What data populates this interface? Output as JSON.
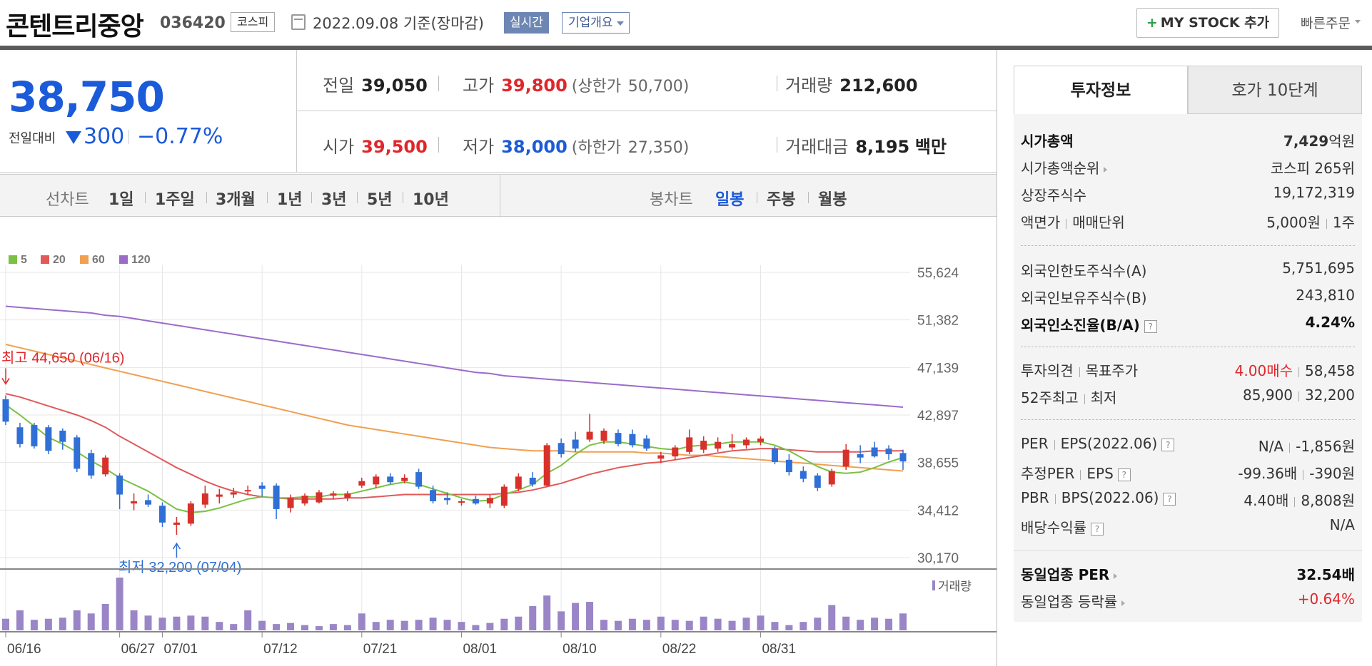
{
  "header": {
    "stock_name": "콘텐트리중앙",
    "stock_code": "036420",
    "market_badge": "코스피",
    "date_text": "2022.09.08  기준(장마감)",
    "realtime_label": "실시간",
    "company_overview_label": "기업개요",
    "my_stock_label": "MY STOCK 추가",
    "my_stock_plus": "+",
    "quick_order_label": "빠른주문"
  },
  "price": {
    "current": "38,750",
    "change_label": "전일대비",
    "change_value": "300",
    "change_percent": "−0.77%",
    "direction": "down"
  },
  "quote": {
    "prev_close_label": "전일",
    "prev_close": "39,050",
    "high_label": "고가",
    "high": "39,800",
    "upper_limit_label": "(상한가",
    "upper_limit": "50,700)",
    "volume_label": "거래량",
    "volume": "212,600",
    "open_label": "시가",
    "open": "39,500",
    "low_label": "저가",
    "low": "38,000",
    "lower_limit_label": "(하한가",
    "lower_limit": "27,350)",
    "trade_value_label": "거래대금",
    "trade_value": "8,195",
    "trade_value_unit": "백만"
  },
  "periods": {
    "line_chart_label": "선차트",
    "line_options": [
      "1일",
      "1주일",
      "3개월",
      "1년",
      "3년",
      "5년",
      "10년"
    ],
    "candle_chart_label": "봉차트",
    "candle_options": [
      "일봉",
      "주봉",
      "월봉"
    ],
    "selected_candle": "일봉"
  },
  "chart_data": {
    "type": "candlestick",
    "legend": [
      {
        "name": "5",
        "color": "#7ac143"
      },
      {
        "name": "20",
        "color": "#e05a5a"
      },
      {
        "name": "60",
        "color": "#f0a050"
      },
      {
        "name": "120",
        "color": "#9a6cc8"
      }
    ],
    "y_ticks": [
      55624,
      51382,
      47139,
      42897,
      38655,
      34412,
      30170
    ],
    "y_tick_labels": [
      "55,624",
      "51,382",
      "47,139",
      "42,897",
      "38,655",
      "34,412",
      "30,170"
    ],
    "ylim": [
      30170,
      55624
    ],
    "x_tick_labels": [
      "06/16",
      "06/27",
      "07/01",
      "07/12",
      "07/21",
      "08/01",
      "08/10",
      "08/22",
      "08/31"
    ],
    "x_tick_index": [
      0,
      8,
      11,
      18,
      25,
      32,
      39,
      46,
      53
    ],
    "high_annotation": "최고 44,650 (06/16)",
    "low_annotation": "최저 32,200 (07/04)",
    "volume_label": "거래량",
    "up_color": "#d8302a",
    "down_color": "#2f6fd6",
    "candles": [
      {
        "o": 44300,
        "h": 44650,
        "l": 42000,
        "c": 42300
      },
      {
        "o": 41800,
        "h": 42200,
        "l": 40000,
        "c": 40300
      },
      {
        "o": 42000,
        "h": 42200,
        "l": 39900,
        "c": 40100
      },
      {
        "o": 41800,
        "h": 42000,
        "l": 39400,
        "c": 39700
      },
      {
        "o": 41500,
        "h": 41700,
        "l": 39800,
        "c": 40500
      },
      {
        "o": 40900,
        "h": 41100,
        "l": 37800,
        "c": 38100
      },
      {
        "o": 39500,
        "h": 39800,
        "l": 37200,
        "c": 37500
      },
      {
        "o": 37600,
        "h": 39300,
        "l": 37400,
        "c": 39100
      },
      {
        "o": 37500,
        "h": 37700,
        "l": 34500,
        "c": 35800
      },
      {
        "o": 35000,
        "h": 35900,
        "l": 34400,
        "c": 35200
      },
      {
        "o": 35300,
        "h": 35800,
        "l": 34700,
        "c": 34900
      },
      {
        "o": 34800,
        "h": 35100,
        "l": 32900,
        "c": 33300
      },
      {
        "o": 33100,
        "h": 33800,
        "l": 32200,
        "c": 33300
      },
      {
        "o": 33200,
        "h": 35200,
        "l": 33000,
        "c": 35000
      },
      {
        "o": 34900,
        "h": 36600,
        "l": 34600,
        "c": 35900
      },
      {
        "o": 35600,
        "h": 36300,
        "l": 35000,
        "c": 35800
      },
      {
        "o": 35800,
        "h": 36400,
        "l": 35500,
        "c": 36000
      },
      {
        "o": 36100,
        "h": 36600,
        "l": 35800,
        "c": 36200
      },
      {
        "o": 36600,
        "h": 36900,
        "l": 35600,
        "c": 36300
      },
      {
        "o": 36600,
        "h": 36800,
        "l": 33600,
        "c": 34500
      },
      {
        "o": 34600,
        "h": 35800,
        "l": 34200,
        "c": 35500
      },
      {
        "o": 35000,
        "h": 35900,
        "l": 34800,
        "c": 35700
      },
      {
        "o": 35100,
        "h": 36200,
        "l": 35000,
        "c": 36000
      },
      {
        "o": 35700,
        "h": 36100,
        "l": 35400,
        "c": 35900
      },
      {
        "o": 35500,
        "h": 36100,
        "l": 35200,
        "c": 35900
      },
      {
        "o": 36600,
        "h": 37300,
        "l": 36400,
        "c": 37000
      },
      {
        "o": 36700,
        "h": 37600,
        "l": 36400,
        "c": 37400
      },
      {
        "o": 37400,
        "h": 37700,
        "l": 36700,
        "c": 36900
      },
      {
        "o": 37000,
        "h": 37600,
        "l": 36800,
        "c": 37300
      },
      {
        "o": 37800,
        "h": 38100,
        "l": 36300,
        "c": 36500
      },
      {
        "o": 36200,
        "h": 36600,
        "l": 35000,
        "c": 35200
      },
      {
        "o": 35500,
        "h": 36000,
        "l": 34900,
        "c": 35300
      },
      {
        "o": 35100,
        "h": 35400,
        "l": 34800,
        "c": 35200
      },
      {
        "o": 35400,
        "h": 35700,
        "l": 34900,
        "c": 35000
      },
      {
        "o": 35000,
        "h": 35800,
        "l": 34600,
        "c": 35500
      },
      {
        "o": 34800,
        "h": 36700,
        "l": 34600,
        "c": 36500
      },
      {
        "o": 36300,
        "h": 37700,
        "l": 36100,
        "c": 37400
      },
      {
        "o": 37300,
        "h": 37800,
        "l": 36500,
        "c": 36700
      },
      {
        "o": 36600,
        "h": 40400,
        "l": 36500,
        "c": 40200
      },
      {
        "o": 40400,
        "h": 40800,
        "l": 39100,
        "c": 39400
      },
      {
        "o": 40700,
        "h": 41400,
        "l": 39600,
        "c": 39900
      },
      {
        "o": 40700,
        "h": 43000,
        "l": 40500,
        "c": 41400
      },
      {
        "o": 40600,
        "h": 41700,
        "l": 40300,
        "c": 41500
      },
      {
        "o": 41300,
        "h": 41600,
        "l": 40100,
        "c": 40300
      },
      {
        "o": 41200,
        "h": 41600,
        "l": 40000,
        "c": 40200
      },
      {
        "o": 40800,
        "h": 41100,
        "l": 39700,
        "c": 39900
      },
      {
        "o": 39000,
        "h": 39600,
        "l": 38600,
        "c": 39300
      },
      {
        "o": 39200,
        "h": 40200,
        "l": 38900,
        "c": 40000
      },
      {
        "o": 39600,
        "h": 41600,
        "l": 39400,
        "c": 40900
      },
      {
        "o": 39800,
        "h": 41000,
        "l": 39500,
        "c": 40600
      },
      {
        "o": 39900,
        "h": 40900,
        "l": 39600,
        "c": 40500
      },
      {
        "o": 40000,
        "h": 41200,
        "l": 39800,
        "c": 40300
      },
      {
        "o": 40200,
        "h": 40900,
        "l": 39900,
        "c": 40700
      },
      {
        "o": 40500,
        "h": 41000,
        "l": 40200,
        "c": 40800
      },
      {
        "o": 39900,
        "h": 40100,
        "l": 38500,
        "c": 38700
      },
      {
        "o": 38900,
        "h": 39400,
        "l": 37500,
        "c": 37800
      },
      {
        "o": 37900,
        "h": 38300,
        "l": 36900,
        "c": 37200
      },
      {
        "o": 37500,
        "h": 37700,
        "l": 36100,
        "c": 36400
      },
      {
        "o": 36700,
        "h": 38100,
        "l": 36500,
        "c": 37900
      },
      {
        "o": 38300,
        "h": 40300,
        "l": 38000,
        "c": 39800
      },
      {
        "o": 39400,
        "h": 40200,
        "l": 38600,
        "c": 39100
      },
      {
        "o": 40000,
        "h": 40500,
        "l": 39100,
        "c": 39200
      },
      {
        "o": 39900,
        "h": 40200,
        "l": 38900,
        "c": 39400
      },
      {
        "o": 39500,
        "h": 39800,
        "l": 38000,
        "c": 38750
      }
    ],
    "volume": [
      22,
      38,
      20,
      22,
      24,
      38,
      32,
      50,
      100,
      38,
      28,
      24,
      26,
      28,
      26,
      16,
      12,
      38,
      18,
      12,
      14,
      10,
      8,
      12,
      10,
      32,
      16,
      20,
      18,
      20,
      24,
      20,
      16,
      10,
      14,
      22,
      26,
      46,
      66,
      36,
      52,
      54,
      20,
      18,
      22,
      20,
      26,
      20,
      18,
      26,
      22,
      18,
      24,
      28,
      16,
      10,
      16,
      24,
      48,
      26,
      20,
      24,
      22,
      32
    ],
    "ma5": [
      43800,
      42900,
      41900,
      40900,
      40300,
      39600,
      38800,
      38100,
      37300,
      36700,
      36100,
      35300,
      34500,
      34200,
      34300,
      34600,
      35000,
      35400,
      35600,
      35500,
      35500,
      35600,
      35600,
      35800,
      35800,
      36100,
      36400,
      36700,
      36900,
      36700,
      36300,
      35900,
      35500,
      35200,
      35300,
      35800,
      36200,
      36700,
      37700,
      38400,
      39400,
      40200,
      40500,
      40500,
      40300,
      40100,
      39900,
      39800,
      40100,
      40200,
      40300,
      40500,
      40500,
      40500,
      40200,
      39700,
      39000,
      38300,
      37800,
      37700,
      37800,
      38200,
      38700,
      39100
    ],
    "ma20": [
      44800,
      44500,
      44100,
      43700,
      43300,
      42900,
      42400,
      41800,
      41000,
      40300,
      39600,
      38900,
      38200,
      37600,
      37000,
      36500,
      36100,
      35800,
      35600,
      35500,
      35400,
      35400,
      35400,
      35400,
      35500,
      35500,
      35600,
      35700,
      35800,
      35800,
      35800,
      35800,
      35800,
      35800,
      35800,
      35900,
      36000,
      36200,
      36500,
      36800,
      37200,
      37600,
      37900,
      38200,
      38400,
      38600,
      38700,
      38900,
      39100,
      39300,
      39500,
      39700,
      39800,
      39900,
      39900,
      39800,
      39700,
      39600,
      39600,
      39600,
      39600,
      39700,
      39700,
      39700
    ],
    "ma60": [
      49200,
      48900,
      48600,
      48300,
      48000,
      47700,
      47400,
      47100,
      46800,
      46500,
      46200,
      45900,
      45600,
      45300,
      45000,
      44700,
      44400,
      44100,
      43800,
      43500,
      43200,
      42900,
      42600,
      42300,
      42000,
      41800,
      41600,
      41400,
      41200,
      41000,
      40800,
      40600,
      40400,
      40200,
      40000,
      39900,
      39800,
      39700,
      39700,
      39700,
      39600,
      39600,
      39600,
      39600,
      39600,
      39500,
      39500,
      39400,
      39300,
      39300,
      39200,
      39100,
      39000,
      38900,
      38800,
      38700,
      38600,
      38500,
      38400,
      38300,
      38200,
      38100,
      38000,
      37900
    ],
    "ma120": [
      52600,
      52500,
      52400,
      52300,
      52200,
      52100,
      52000,
      51800,
      51700,
      51500,
      51300,
      51100,
      50900,
      50700,
      50500,
      50300,
      50100,
      49900,
      49700,
      49500,
      49300,
      49100,
      48900,
      48700,
      48500,
      48300,
      48100,
      47900,
      47700,
      47500,
      47300,
      47100,
      46900,
      46700,
      46600,
      46400,
      46300,
      46200,
      46100,
      46000,
      45900,
      45800,
      45700,
      45600,
      45500,
      45400,
      45300,
      45200,
      45100,
      45000,
      44900,
      44800,
      44700,
      44600,
      44500,
      44400,
      44300,
      44200,
      44100,
      44000,
      43900,
      43800,
      43700,
      43600
    ]
  },
  "panel": {
    "tab_active": "투자정보",
    "tab_inactive": "호가 10단계",
    "market_cap_label": "시가총액",
    "market_cap_value": "7,429",
    "market_cap_unit": "억원",
    "cap_rank_label": "시가총액순위",
    "cap_rank_value": "코스피 265위",
    "shares_label": "상장주식수",
    "shares_value": "19,172,319",
    "par_label": "액면가",
    "unit_label": "매매단위",
    "par_value": "5,000원",
    "unit_value": "1주",
    "foreign_limit_label": "외국인한도주식수(A)",
    "foreign_limit_value": "5,751,695",
    "foreign_hold_label": "외국인보유주식수(B)",
    "foreign_hold_value": "243,810",
    "foreign_rate_label": "외국인소진율(B/A)",
    "foreign_rate_value": "4.24%",
    "opinion_label": "투자의견",
    "target_label": "목표주가",
    "opinion_value": "4.00매수",
    "target_value": "58,458",
    "w52_high_label": "52주최고",
    "w52_low_label": "최저",
    "w52_high_value": "85,900",
    "w52_low_value": "32,200",
    "per_label": "PER",
    "eps_label": "EPS(2022.06)",
    "per_value": "N/A",
    "eps_value": "-1,856원",
    "est_per_label": "추정PER",
    "est_eps_label": "EPS",
    "est_per_value": "-99.36배",
    "est_eps_value": "-390원",
    "pbr_label": "PBR",
    "bps_label": "BPS(2022.06)",
    "pbr_value": "4.40배",
    "bps_value": "8,808원",
    "dividend_label": "배당수익률",
    "dividend_value": "N/A",
    "sector_per_label": "동일업종 PER",
    "sector_per_value": "32.54배",
    "sector_change_label": "동일업종 등락률",
    "sector_change_value": "+0.64%",
    "help_glyph": "?"
  }
}
